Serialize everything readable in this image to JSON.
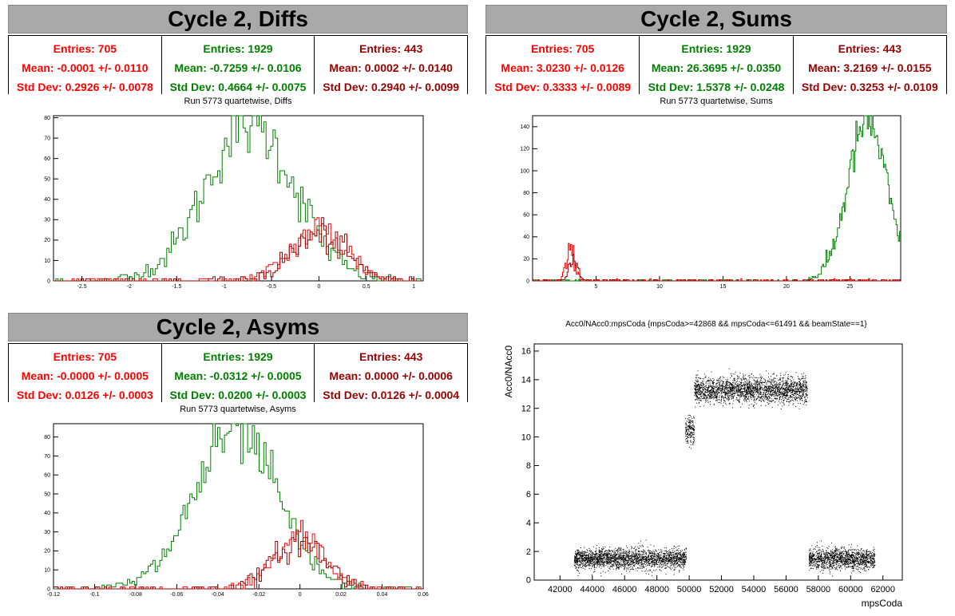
{
  "colors": {
    "red": "#ff0000",
    "green": "#008000",
    "darkred": "#990000",
    "black": "#000000",
    "title_bg": "#a9a9a9"
  },
  "panels": {
    "diffs": {
      "title": "Cycle 2, Diffs",
      "stats": [
        {
          "entries": "Entries: 705",
          "mean": "Mean: -0.0001 +/- 0.0110",
          "std": "Std Dev: 0.2926 +/- 0.0078",
          "color": "#ff0000"
        },
        {
          "entries": "Entries: 1929",
          "mean": "Mean: -0.7259 +/- 0.0106",
          "std": "Std Dev: 0.4664 +/- 0.0075",
          "color": "#008000"
        },
        {
          "entries": "Entries: 443",
          "mean": "Mean: 0.0002 +/- 0.0140",
          "std": "Std Dev: 0.2940 +/- 0.0099",
          "color": "#990000"
        }
      ],
      "subtitle": "Run 5773 quartetwise, Diffs"
    },
    "sums": {
      "title": "Cycle 2, Sums",
      "stats": [
        {
          "entries": "Entries: 705",
          "mean": "Mean: 3.0230 +/- 0.0126",
          "std": "Std Dev: 0.3333 +/- 0.0089",
          "color": "#ff0000"
        },
        {
          "entries": "Entries: 1929",
          "mean": "Mean: 26.3695 +/- 0.0350",
          "std": "Std Dev: 1.5378 +/- 0.0248",
          "color": "#008000"
        },
        {
          "entries": "Entries: 443",
          "mean": "Mean: 3.2169 +/- 0.0155",
          "std": "Std Dev: 0.3253 +/- 0.0109",
          "color": "#990000"
        }
      ],
      "subtitle": "Run 5773 quartetwise, Sums"
    },
    "asyms": {
      "title": "Cycle 2, Asyms",
      "stats": [
        {
          "entries": "Entries: 705",
          "mean": "Mean: -0.0000 +/- 0.0005",
          "std": "Std Dev: 0.0126 +/- 0.0003",
          "color": "#ff0000"
        },
        {
          "entries": "Entries: 1929",
          "mean": "Mean: -0.0312 +/- 0.0005",
          "std": "Std Dev: 0.0200 +/- 0.0003",
          "color": "#008000"
        },
        {
          "entries": "Entries: 443",
          "mean": "Mean: 0.0000 +/- 0.0006",
          "std": "Std Dev: 0.0126 +/- 0.0004",
          "color": "#990000"
        }
      ],
      "subtitle": "Run 5773 quartetwise, Asyms"
    },
    "scatter": {
      "subtitle": "Acc0/NAcc0:mpsCoda {mpsCoda>=42868 && mpsCoda<=61491 && beamState==1}"
    }
  },
  "chart_data": [
    {
      "type": "histogram",
      "title": "Run 5773 quartetwise, Diffs",
      "xlim": [
        -2.8,
        1.1
      ],
      "ylim": [
        0,
        81
      ],
      "xticks": [
        -2.5,
        -2,
        -1.5,
        -1,
        -0.5,
        0,
        0.5,
        1
      ],
      "xtick_labels": [
        "-2.5",
        "-2",
        "-1.5",
        "-1",
        "-0.5",
        "0",
        "0.5",
        "1"
      ],
      "yticks": [
        0,
        10,
        20,
        30,
        40,
        50,
        60,
        70,
        80
      ],
      "series": [
        {
          "color": "#008000",
          "entries": 1929,
          "mean": -0.7259,
          "std": 0.4664,
          "peak": 77
        },
        {
          "color": "#ff0000",
          "entries": 705,
          "mean": -0.0001,
          "std": 0.2926,
          "peak": 25
        },
        {
          "color": "#990000",
          "entries": 443,
          "mean": 0.0002,
          "std": 0.294,
          "peak": 22
        }
      ]
    },
    {
      "type": "histogram",
      "title": "Run 5773 quartetwise, Sums",
      "xlim": [
        0,
        29
      ],
      "ylim": [
        0,
        150
      ],
      "xticks": [
        5,
        10,
        15,
        20,
        25
      ],
      "xtick_labels": [
        "5",
        "10",
        "15",
        "20",
        "25"
      ],
      "yticks": [
        0,
        20,
        40,
        60,
        80,
        100,
        120,
        140
      ],
      "series": [
        {
          "color": "#008000",
          "entries": 1929,
          "mean": 26.3695,
          "std": 1.5378,
          "peak": 145
        },
        {
          "color": "#ff0000",
          "entries": 705,
          "mean": 3.023,
          "std": 0.3333,
          "peak": 28
        },
        {
          "color": "#990000",
          "entries": 443,
          "mean": 3.2169,
          "std": 0.3253,
          "peak": 20
        }
      ]
    },
    {
      "type": "histogram",
      "title": "Run 5773 quartetwise, Asyms",
      "xlim": [
        -0.12,
        0.06
      ],
      "ylim": [
        0,
        87
      ],
      "xticks": [
        -0.12,
        -0.1,
        -0.08,
        -0.06,
        -0.04,
        -0.02,
        0,
        0.02,
        0.04,
        0.06
      ],
      "xtick_labels": [
        "-0.12",
        "-0.1",
        "-0.08",
        "-0.06",
        "-0.04",
        "-0.02",
        "0",
        "0.02",
        "0.04",
        "0.06"
      ],
      "yticks": [
        0,
        10,
        20,
        30,
        40,
        50,
        60,
        70,
        80
      ],
      "series": [
        {
          "color": "#008000",
          "entries": 1929,
          "mean": -0.0312,
          "std": 0.02,
          "peak": 83
        },
        {
          "color": "#ff0000",
          "entries": 705,
          "mean": 0.0,
          "std": 0.0126,
          "peak": 26
        },
        {
          "color": "#990000",
          "entries": 443,
          "mean": 0.0,
          "std": 0.0126,
          "peak": 25
        }
      ]
    },
    {
      "type": "scatter",
      "title": "Acc0/NAcc0:mpsCoda {mpsCoda>=42868 && mpsCoda<=61491 && beamState==1}",
      "xlabel": "mpsCoda",
      "ylabel": "Acc0/NAcc0",
      "xlim": [
        40400,
        63200
      ],
      "ylim": [
        0,
        16.5
      ],
      "xticks": [
        42000,
        44000,
        46000,
        48000,
        50000,
        52000,
        54000,
        56000,
        58000,
        60000,
        62000
      ],
      "xtick_labels": [
        "42000",
        "44000",
        "46000",
        "48000",
        "50000",
        "52000",
        "54000",
        "56000",
        "58000",
        "60000",
        "62000"
      ],
      "yticks": [
        0,
        2,
        4,
        6,
        8,
        10,
        12,
        14,
        16
      ],
      "clusters": [
        {
          "x": [
            42868,
            49800
          ],
          "y_mean": 1.5,
          "y_spread": 0.35
        },
        {
          "x": [
            49750,
            50300
          ],
          "y_mean": 10.5,
          "y_spread": 0.5
        },
        {
          "x": [
            50300,
            57300
          ],
          "y_mean": 13.3,
          "y_spread": 0.45
        },
        {
          "x": [
            57400,
            61491
          ],
          "y_mean": 1.5,
          "y_spread": 0.35
        }
      ]
    }
  ]
}
